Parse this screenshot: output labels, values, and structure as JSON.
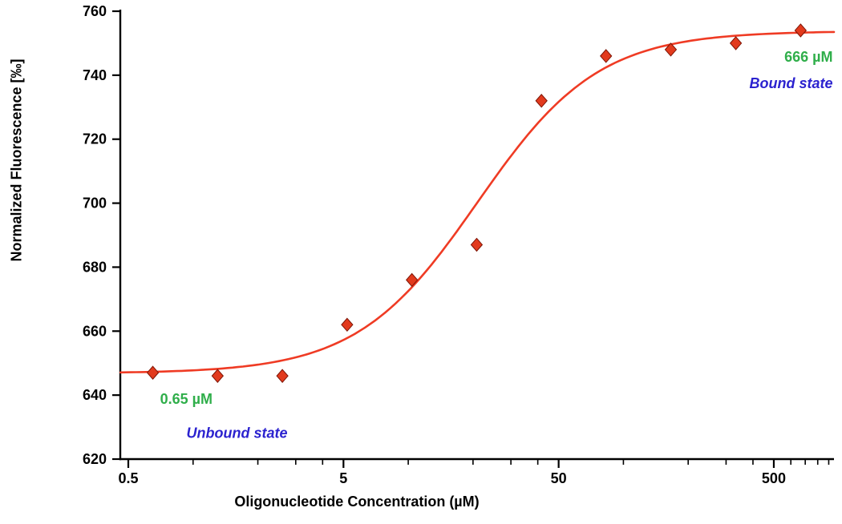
{
  "chart_data": {
    "type": "scatter",
    "title": "",
    "xlabel": "Oligonucleotide Concentration (µM)",
    "ylabel": "Normalized Fluorescence [‰]",
    "x_scale": "log",
    "xlim": [
      0.5,
      952
    ],
    "ylim": [
      620,
      760
    ],
    "y_ticks": [
      620,
      640,
      660,
      680,
      700,
      720,
      740,
      760
    ],
    "x_major_ticks": [
      0.5,
      5,
      50,
      500
    ],
    "x_minor_ticks": [
      1,
      2,
      3,
      4,
      10,
      20,
      30,
      40,
      100,
      200,
      300,
      400,
      600,
      700,
      800,
      900
    ],
    "grid": false,
    "legend": null,
    "series": [
      {
        "name": "titration-points",
        "marker": "diamond",
        "x": [
          0.65,
          1.3,
          2.6,
          5.2,
          10.4,
          20.8,
          41.6,
          83,
          166,
          333,
          666
        ],
        "y": [
          647,
          646,
          646,
          662,
          676,
          687,
          732,
          746,
          748,
          750,
          754
        ]
      }
    ],
    "fit_curve": {
      "model": "4PL-sigmoid",
      "bottom": 646.8,
      "top": 753.8,
      "ec50_uM": 21,
      "hill": 1.55
    },
    "annotations": [
      {
        "id": "unbound-concentration",
        "text": "0.65 µM",
        "x": 0.93,
        "y": 637.3,
        "anchor": "middle",
        "italic": false,
        "color": "#2fae4a"
      },
      {
        "id": "unbound-state",
        "text": "Unbound state",
        "x": 1.6,
        "y": 626.6,
        "anchor": "middle",
        "italic": true,
        "color": "#2b22cf"
      },
      {
        "id": "bound-concentration",
        "text": "666 µM",
        "x": 940,
        "y": 744.2,
        "anchor": "end",
        "italic": false,
        "color": "#2fae4a"
      },
      {
        "id": "bound-state",
        "text": "Bound state",
        "x": 940,
        "y": 736.0,
        "anchor": "end",
        "italic": true,
        "color": "#2b22cf"
      }
    ],
    "colors": {
      "marker_fill": "#e23a1d",
      "marker_stroke": "#7c1405",
      "curve": "#ef3b24",
      "axis": "#000000"
    }
  }
}
